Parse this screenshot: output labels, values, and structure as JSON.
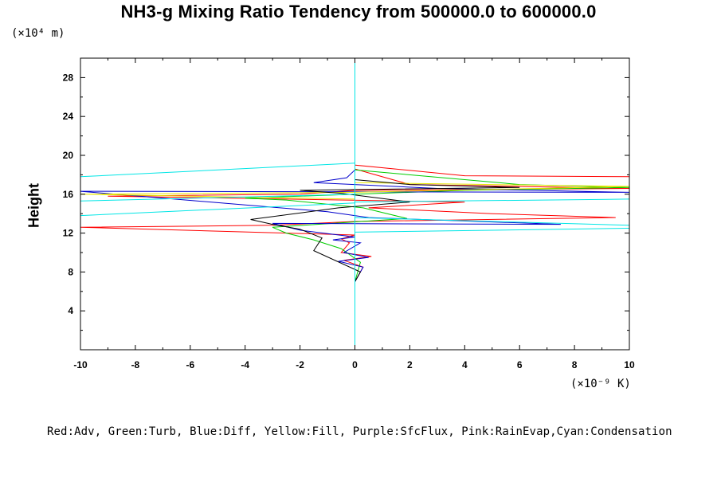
{
  "chart_data": {
    "type": "line",
    "title": "NH3-g Mixing Ratio Tendency from 500000.0 to 600000.0",
    "ylabel": "Height",
    "y_unit": "(×10⁴ m)",
    "x_unit": "(×10⁻⁹ K)",
    "xlim": [
      -10,
      10
    ],
    "ylim": [
      0,
      30
    ],
    "x_ticks": [
      -10,
      -8,
      -6,
      -4,
      -2,
      0,
      2,
      4,
      6,
      8,
      10
    ],
    "y_ticks": [
      4,
      8,
      12,
      16,
      20,
      24,
      28
    ],
    "grid": false,
    "legend_text": "Red:Adv, Green:Turb, Blue:Diff, Yellow:Fill, Purple:SfcFlux, Pink:RainEvap,Cyan:Condensation",
    "colors": {
      "axis": "#000000",
      "red": "#ff0000",
      "green": "#00cc00",
      "blue": "#0000cc",
      "yellow": "#e6e600",
      "purple": "#cc00cc",
      "black": "#000000",
      "cyan": "#00e6e6"
    },
    "series": [
      {
        "color": "#ff0000",
        "points": [
          [
            0,
            0
          ],
          [
            0,
            7
          ],
          [
            0.3,
            8.5
          ],
          [
            -0.4,
            9.2
          ],
          [
            0.6,
            9.6
          ],
          [
            -0.5,
            10
          ],
          [
            -0.2,
            11
          ],
          [
            -0.5,
            11.4
          ],
          [
            0,
            11.8
          ],
          [
            -10,
            12.6
          ],
          [
            -3,
            12.8
          ],
          [
            0,
            13.2
          ],
          [
            9.5,
            13.6
          ],
          [
            5,
            14
          ],
          [
            0.5,
            14.6
          ],
          [
            4,
            15.2
          ],
          [
            -9,
            15.8
          ],
          [
            -2,
            16
          ],
          [
            0,
            16.4
          ],
          [
            10,
            16.6
          ],
          [
            2,
            17
          ],
          [
            0,
            18.6
          ],
          [
            0,
            19
          ],
          [
            4,
            17.9
          ],
          [
            10,
            17.8
          ]
        ]
      },
      {
        "color": "#00cc00",
        "points": [
          [
            0,
            0
          ],
          [
            0,
            7
          ],
          [
            0.2,
            9
          ],
          [
            -0.5,
            10.4
          ],
          [
            -1.5,
            11.3
          ],
          [
            -2.5,
            12
          ],
          [
            -3,
            12.6
          ],
          [
            1.9,
            13.5
          ],
          [
            0.3,
            14.6
          ],
          [
            -2.5,
            15.4
          ],
          [
            -4,
            15.6
          ],
          [
            4,
            16.4
          ],
          [
            10,
            16.7
          ],
          [
            6,
            17
          ],
          [
            0,
            18.5
          ]
        ]
      },
      {
        "color": "#0000cc",
        "points": [
          [
            0,
            0
          ],
          [
            0,
            7
          ],
          [
            0.3,
            8.5
          ],
          [
            -0.6,
            9.1
          ],
          [
            0.5,
            9.5
          ],
          [
            -0.4,
            10
          ],
          [
            0.2,
            11
          ],
          [
            -0.8,
            11.3
          ],
          [
            0,
            11.6
          ],
          [
            -2,
            12.3
          ],
          [
            -3,
            13
          ],
          [
            7.5,
            12.9
          ],
          [
            0.5,
            13.6
          ],
          [
            -1,
            14.2
          ],
          [
            -10,
            16.3
          ],
          [
            10,
            16.2
          ],
          [
            3,
            16.6
          ],
          [
            -1.5,
            17.2
          ],
          [
            -0.3,
            17.7
          ],
          [
            0,
            18.5
          ]
        ]
      },
      {
        "color": "#e6e600",
        "points": [
          [
            0,
            0
          ],
          [
            0,
            15.5
          ],
          [
            -10,
            16
          ],
          [
            0,
            16.2
          ],
          [
            10,
            16.8
          ],
          [
            0,
            17.2
          ],
          [
            0,
            18.6
          ]
        ]
      },
      {
        "color": "#000000",
        "points": [
          [
            0,
            0
          ],
          [
            0,
            7
          ],
          [
            0.2,
            8
          ],
          [
            -1.5,
            10.2
          ],
          [
            -1.2,
            11.5
          ],
          [
            -2,
            12.4
          ],
          [
            -3,
            12.9
          ],
          [
            -3.8,
            13.4
          ],
          [
            -0.6,
            14.6
          ],
          [
            2,
            15.2
          ],
          [
            -0.5,
            16.1
          ],
          [
            -2,
            16.4
          ],
          [
            6,
            16.7
          ],
          [
            2,
            17
          ],
          [
            0,
            17.5
          ],
          [
            0,
            18.7
          ]
        ]
      },
      {
        "color": "#00e6e6",
        "points": [
          [
            0,
            0
          ],
          [
            0,
            30
          ]
        ]
      },
      {
        "color": "#00e6e6",
        "points": [
          [
            0,
            19.2
          ],
          [
            -10,
            17.8
          ]
        ]
      },
      {
        "color": "#00e6e6",
        "points": [
          [
            0,
            16
          ],
          [
            -10,
            15.3
          ]
        ]
      },
      {
        "color": "#00e6e6",
        "points": [
          [
            0,
            15.1
          ],
          [
            -10,
            13.8
          ]
        ]
      },
      {
        "color": "#00e6e6",
        "points": [
          [
            0,
            12.1
          ],
          [
            10,
            12.5
          ]
        ]
      },
      {
        "color": "#00e6e6",
        "points": [
          [
            0,
            15.2
          ],
          [
            10,
            15.5
          ]
        ]
      },
      {
        "color": "#00e6e6",
        "points": [
          [
            0,
            13.6
          ],
          [
            10,
            12.8
          ]
        ]
      }
    ]
  }
}
